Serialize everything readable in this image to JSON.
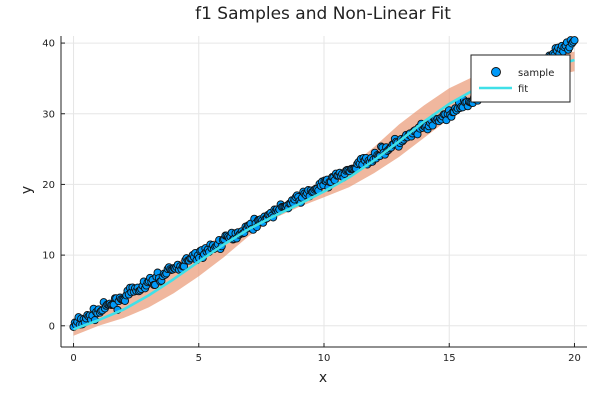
{
  "chart_data": {
    "type": "scatter",
    "title": "f1 Samples and Non-Linear Fit",
    "xlabel": "x",
    "ylabel": "y",
    "xlim": [
      -0.5,
      20.5
    ],
    "ylim": [
      -3,
      41
    ],
    "xticks": [
      0,
      5,
      10,
      15,
      20
    ],
    "yticks": [
      0,
      10,
      20,
      30,
      40
    ],
    "grid": true,
    "legend_position": "top-right",
    "series": [
      {
        "name": "sample",
        "kind": "scatter",
        "color": "#009af9",
        "trend": {
          "slope": 2.0,
          "intercept": 0.0,
          "noise": 0.35,
          "x_range": [
            0,
            20
          ],
          "count": 400
        }
      },
      {
        "name": "fit",
        "kind": "line",
        "color": "#40e0e8",
        "x": [
          0,
          1,
          2,
          3,
          4,
          5,
          6,
          7,
          8,
          9,
          10,
          11,
          12,
          13,
          14,
          15,
          16,
          17,
          18,
          19,
          20
        ],
        "y": [
          -0.5,
          0.8,
          2.3,
          4.3,
          6.6,
          9.1,
          11.5,
          13.7,
          15.5,
          17.2,
          19.0,
          21.0,
          23.4,
          26.1,
          28.9,
          31.4,
          33.4,
          34.8,
          35.8,
          36.6,
          37.6
        ]
      }
    ],
    "band": {
      "color": "#e8906a",
      "x": [
        0,
        1,
        2,
        3,
        4,
        5,
        6,
        7,
        8,
        9,
        10,
        11,
        12,
        13,
        14,
        15,
        16,
        17,
        18,
        19,
        20
      ],
      "upper": [
        -0.1,
        1.6,
        3.6,
        6.0,
        8.6,
        11.0,
        12.8,
        14.3,
        15.8,
        17.6,
        19.7,
        22.4,
        25.3,
        28.5,
        31.2,
        33.6,
        35.3,
        36.4,
        37.3,
        38.1,
        38.8
      ],
      "lower": [
        -1.4,
        0.0,
        1.1,
        2.6,
        4.6,
        7.0,
        9.7,
        12.7,
        15.2,
        16.8,
        18.2,
        19.6,
        21.6,
        23.9,
        26.6,
        29.3,
        31.5,
        33.2,
        34.4,
        35.2,
        36.0
      ]
    }
  }
}
